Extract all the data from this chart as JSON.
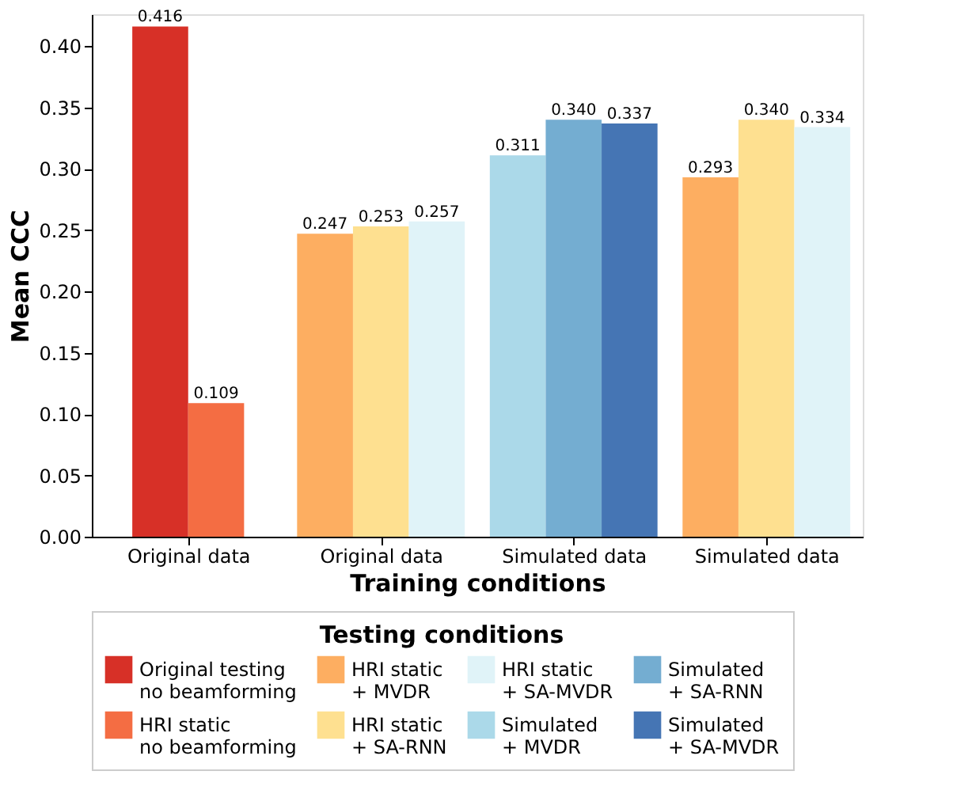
{
  "chart_data": {
    "type": "bar",
    "xlabel": "Training conditions",
    "ylabel": "Mean CCC",
    "legend_title": "Testing conditions",
    "legend": "bottom",
    "grid": false,
    "categories": [
      "Original data",
      "Original data",
      "Simulated data",
      "Simulated data"
    ],
    "ylim": [
      0,
      0.426
    ],
    "yticks": [
      {
        "value": 0,
        "label": "0.00"
      },
      0.05,
      {
        "value": 0.1,
        "label": "0.10"
      },
      0.15,
      {
        "value": 0.2,
        "label": "0.20"
      },
      0.25,
      {
        "value": 0.3,
        "label": "0.30"
      },
      0.35,
      {
        "value": 0.4,
        "label": "0.40"
      }
    ],
    "series": [
      {
        "name": "Original testing\nno beamforming",
        "color": "#d73027",
        "values": [
          0.416,
          null,
          null,
          null
        ],
        "value_labels": [
          "0.416",
          null,
          null,
          null
        ]
      },
      {
        "name": "HRI static\nno beamforming",
        "color": "#f46d43",
        "values": [
          0.109,
          null,
          null,
          null
        ],
        "value_labels": [
          "0.109",
          null,
          null,
          null
        ]
      },
      {
        "name": "HRI static\n+ MVDR",
        "color": "#fdae61",
        "values": [
          null,
          0.247,
          null,
          0.293
        ],
        "value_labels": [
          null,
          "0.247",
          null,
          "0.293"
        ]
      },
      {
        "name": "HRI static\n+ SA-RNN",
        "color": "#fee090",
        "values": [
          null,
          0.253,
          null,
          0.34
        ],
        "value_labels": [
          null,
          "0.253",
          null,
          "0.340"
        ]
      },
      {
        "name": "HRI static\n+ SA-MVDR",
        "color": "#e0f3f8",
        "values": [
          null,
          0.257,
          null,
          0.334
        ],
        "value_labels": [
          null,
          "0.257",
          null,
          "0.334"
        ]
      },
      {
        "name": "Simulated\n+ MVDR",
        "color": "#abd9e9",
        "values": [
          null,
          null,
          0.311,
          null
        ],
        "value_labels": [
          null,
          null,
          "0.311",
          null
        ]
      },
      {
        "name": "Simulated\n+ SA-RNN",
        "color": "#74add1",
        "values": [
          null,
          null,
          0.34,
          null
        ],
        "value_labels": [
          null,
          null,
          "0.340",
          null
        ]
      },
      {
        "name": "Simulated\n+ SA-MVDR",
        "color": "#4575b4",
        "values": [
          null,
          null,
          0.337,
          null
        ],
        "value_labels": [
          null,
          null,
          "0.337",
          null
        ]
      }
    ]
  }
}
